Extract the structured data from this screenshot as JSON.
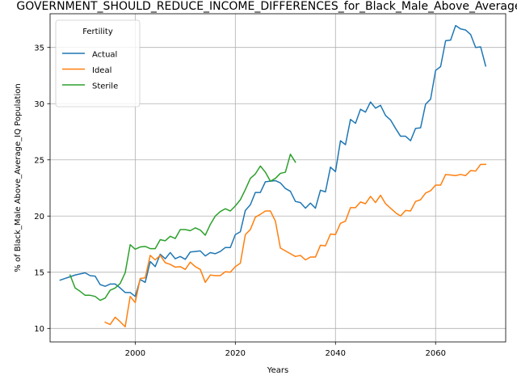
{
  "chart_data": {
    "type": "line",
    "title": "GOVERNMENT_SHOULD_REDUCE_INCOME_DIFFERENCES_for_Black_Male_Above_Average_IQ",
    "xlabel": "Years",
    "ylabel": "% of Black_Male Above_Average_IQ Population",
    "xlim": [
      1983,
      2074
    ],
    "ylim": [
      8.8,
      38.0
    ],
    "xticks": [
      2000,
      2020,
      2040,
      2060
    ],
    "yticks": [
      10,
      15,
      20,
      25,
      30,
      35
    ],
    "grid": true,
    "legend": {
      "title": "Fertility",
      "position": "top-left"
    },
    "series": [
      {
        "name": "Actual",
        "color": "#1f77b4",
        "points": [
          [
            1985,
            14.3
          ],
          [
            1986,
            14.45
          ],
          [
            1987,
            14.6
          ],
          [
            1988,
            14.75
          ],
          [
            1989,
            14.85
          ],
          [
            1990,
            14.95
          ],
          [
            1991,
            14.7
          ],
          [
            1992,
            14.65
          ],
          [
            1993,
            13.9
          ],
          [
            1994,
            13.75
          ],
          [
            1995,
            13.95
          ],
          [
            1996,
            13.95
          ],
          [
            1997,
            13.6
          ],
          [
            1998,
            13.2
          ],
          [
            1999,
            13.2
          ],
          [
            2000,
            12.85
          ],
          [
            2001,
            14.35
          ],
          [
            2002,
            14.1
          ],
          [
            2003,
            15.95
          ],
          [
            2004,
            15.5
          ],
          [
            2005,
            16.6
          ],
          [
            2006,
            16.2
          ],
          [
            2007,
            16.75
          ],
          [
            2008,
            16.2
          ],
          [
            2009,
            16.4
          ],
          [
            2010,
            16.15
          ],
          [
            2011,
            16.8
          ],
          [
            2012,
            16.85
          ],
          [
            2013,
            16.9
          ],
          [
            2014,
            16.45
          ],
          [
            2015,
            16.75
          ],
          [
            2016,
            16.65
          ],
          [
            2017,
            16.85
          ],
          [
            2018,
            17.2
          ],
          [
            2019,
            17.2
          ],
          [
            2020,
            18.35
          ],
          [
            2021,
            18.6
          ],
          [
            2022,
            20.5
          ],
          [
            2023,
            21.0
          ],
          [
            2024,
            22.1
          ],
          [
            2025,
            22.1
          ],
          [
            2026,
            23.05
          ],
          [
            2027,
            23.1
          ],
          [
            2028,
            23.15
          ],
          [
            2029,
            22.95
          ],
          [
            2030,
            22.45
          ],
          [
            2031,
            22.2
          ],
          [
            2032,
            21.3
          ],
          [
            2033,
            21.2
          ],
          [
            2034,
            20.7
          ],
          [
            2035,
            21.15
          ],
          [
            2036,
            20.7
          ],
          [
            2037,
            22.3
          ],
          [
            2038,
            22.15
          ],
          [
            2039,
            24.35
          ],
          [
            2040,
            23.95
          ],
          [
            2041,
            26.7
          ],
          [
            2042,
            26.35
          ],
          [
            2043,
            28.6
          ],
          [
            2044,
            28.25
          ],
          [
            2045,
            29.5
          ],
          [
            2046,
            29.25
          ],
          [
            2047,
            30.15
          ],
          [
            2048,
            29.6
          ],
          [
            2049,
            29.85
          ],
          [
            2050,
            28.95
          ],
          [
            2051,
            28.55
          ],
          [
            2052,
            27.8
          ],
          [
            2053,
            27.1
          ],
          [
            2054,
            27.1
          ],
          [
            2055,
            26.7
          ],
          [
            2056,
            27.8
          ],
          [
            2057,
            27.85
          ],
          [
            2058,
            29.95
          ],
          [
            2059,
            30.4
          ],
          [
            2060,
            32.95
          ],
          [
            2061,
            33.3
          ],
          [
            2062,
            35.6
          ],
          [
            2063,
            35.65
          ],
          [
            2064,
            36.95
          ],
          [
            2065,
            36.65
          ],
          [
            2066,
            36.55
          ],
          [
            2067,
            36.15
          ],
          [
            2068,
            35.0
          ],
          [
            2069,
            35.05
          ],
          [
            2070,
            33.35
          ]
        ]
      },
      {
        "name": "Ideal",
        "color": "#ff7f0e",
        "points": [
          [
            1994,
            10.55
          ],
          [
            1995,
            10.35
          ],
          [
            1996,
            11.0
          ],
          [
            1997,
            10.6
          ],
          [
            1998,
            10.15
          ],
          [
            1999,
            12.85
          ],
          [
            2000,
            12.3
          ],
          [
            2001,
            14.45
          ],
          [
            2002,
            14.5
          ],
          [
            2003,
            16.5
          ],
          [
            2004,
            16.1
          ],
          [
            2005,
            16.5
          ],
          [
            2006,
            15.85
          ],
          [
            2007,
            15.7
          ],
          [
            2008,
            15.45
          ],
          [
            2009,
            15.5
          ],
          [
            2010,
            15.25
          ],
          [
            2011,
            15.9
          ],
          [
            2012,
            15.5
          ],
          [
            2013,
            15.25
          ],
          [
            2014,
            14.1
          ],
          [
            2015,
            14.75
          ],
          [
            2016,
            14.7
          ],
          [
            2017,
            14.7
          ],
          [
            2018,
            15.05
          ],
          [
            2019,
            15.0
          ],
          [
            2020,
            15.5
          ],
          [
            2021,
            15.8
          ],
          [
            2022,
            18.35
          ],
          [
            2023,
            18.8
          ],
          [
            2024,
            19.9
          ],
          [
            2025,
            20.15
          ],
          [
            2026,
            20.45
          ],
          [
            2027,
            20.45
          ],
          [
            2028,
            19.55
          ],
          [
            2029,
            17.15
          ],
          [
            2030,
            16.9
          ],
          [
            2031,
            16.65
          ],
          [
            2032,
            16.4
          ],
          [
            2033,
            16.5
          ],
          [
            2034,
            16.1
          ],
          [
            2035,
            16.35
          ],
          [
            2036,
            16.35
          ],
          [
            2037,
            17.4
          ],
          [
            2038,
            17.35
          ],
          [
            2039,
            18.4
          ],
          [
            2040,
            18.35
          ],
          [
            2041,
            19.35
          ],
          [
            2042,
            19.55
          ],
          [
            2043,
            20.75
          ],
          [
            2044,
            20.75
          ],
          [
            2045,
            21.25
          ],
          [
            2046,
            21.1
          ],
          [
            2047,
            21.75
          ],
          [
            2048,
            21.2
          ],
          [
            2049,
            21.85
          ],
          [
            2050,
            21.1
          ],
          [
            2051,
            20.7
          ],
          [
            2052,
            20.3
          ],
          [
            2053,
            20.0
          ],
          [
            2054,
            20.5
          ],
          [
            2055,
            20.45
          ],
          [
            2056,
            21.3
          ],
          [
            2057,
            21.45
          ],
          [
            2058,
            22.05
          ],
          [
            2059,
            22.25
          ],
          [
            2060,
            22.75
          ],
          [
            2061,
            22.75
          ],
          [
            2062,
            23.7
          ],
          [
            2063,
            23.65
          ],
          [
            2064,
            23.6
          ],
          [
            2065,
            23.7
          ],
          [
            2066,
            23.6
          ],
          [
            2067,
            24.05
          ],
          [
            2068,
            24.0
          ],
          [
            2069,
            24.6
          ],
          [
            2070,
            24.6
          ]
        ]
      },
      {
        "name": "Sterile",
        "color": "#2ca02c",
        "points": [
          [
            1987,
            14.75
          ],
          [
            1988,
            13.6
          ],
          [
            1989,
            13.3
          ],
          [
            1990,
            12.95
          ],
          [
            1991,
            12.95
          ],
          [
            1992,
            12.85
          ],
          [
            1993,
            12.5
          ],
          [
            1994,
            12.7
          ],
          [
            1995,
            13.4
          ],
          [
            1996,
            13.6
          ],
          [
            1997,
            14.0
          ],
          [
            1998,
            14.95
          ],
          [
            1999,
            17.45
          ],
          [
            2000,
            17.05
          ],
          [
            2001,
            17.25
          ],
          [
            2002,
            17.3
          ],
          [
            2003,
            17.1
          ],
          [
            2004,
            17.1
          ],
          [
            2005,
            17.9
          ],
          [
            2006,
            17.8
          ],
          [
            2007,
            18.2
          ],
          [
            2008,
            18.0
          ],
          [
            2009,
            18.8
          ],
          [
            2010,
            18.8
          ],
          [
            2011,
            18.7
          ],
          [
            2012,
            18.95
          ],
          [
            2013,
            18.75
          ],
          [
            2014,
            18.3
          ],
          [
            2015,
            19.25
          ],
          [
            2016,
            20.0
          ],
          [
            2017,
            20.4
          ],
          [
            2018,
            20.65
          ],
          [
            2019,
            20.45
          ],
          [
            2020,
            20.9
          ],
          [
            2021,
            21.45
          ],
          [
            2022,
            22.35
          ],
          [
            2023,
            23.35
          ],
          [
            2024,
            23.75
          ],
          [
            2025,
            24.45
          ],
          [
            2026,
            23.9
          ],
          [
            2027,
            23.1
          ],
          [
            2028,
            23.35
          ],
          [
            2029,
            23.8
          ],
          [
            2030,
            23.9
          ],
          [
            2031,
            25.5
          ],
          [
            2032,
            24.8
          ]
        ]
      }
    ]
  }
}
